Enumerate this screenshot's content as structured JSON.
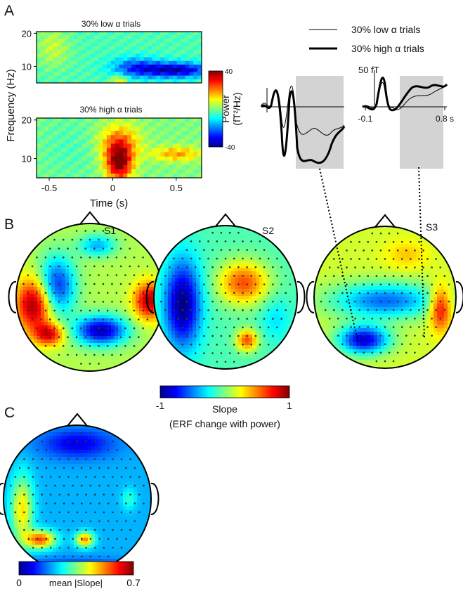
{
  "panel_a": {
    "label": "A",
    "heatmap_titles": [
      "30% low α trials",
      "30%  high α trials"
    ],
    "y_label": "Frequency (Hz)",
    "x_label": "Time (s)",
    "ylim": [
      5,
      20.5
    ],
    "yticks": [
      10,
      20
    ],
    "xlim": [
      -0.6,
      0.7
    ],
    "xticks": [
      -0.5,
      0,
      0.5
    ],
    "colorbar_label": "Power",
    "colorbar_unit": "(fT²/Hz)",
    "colorbar_lim": [
      -40,
      40
    ],
    "colorbar_ticks": [
      40,
      -40
    ],
    "legend": [
      "30% low α  trials",
      "30% high α trials"
    ],
    "erf_scale_bar": "50 fT",
    "erf_xlim": [
      -0.1,
      0.8
    ],
    "erf_xticks": [
      -0.1,
      {
        "value": 0.8,
        "label": "0.8 s"
      }
    ]
  },
  "panel_b": {
    "label": "B",
    "subjects": [
      "S1",
      "S2",
      "S3"
    ],
    "colorbar_lim": [
      -1,
      1
    ],
    "colorbar_ticks": [
      -1,
      1
    ],
    "colorbar_label": "Slope",
    "colorbar_sublabel": "(ERF change with power)"
  },
  "panel_c": {
    "label": "C",
    "colorbar_lim": [
      0,
      0.7
    ],
    "colorbar_ticks": [
      0,
      0.7
    ],
    "colorbar_label": "mean |Slope|"
  }
}
